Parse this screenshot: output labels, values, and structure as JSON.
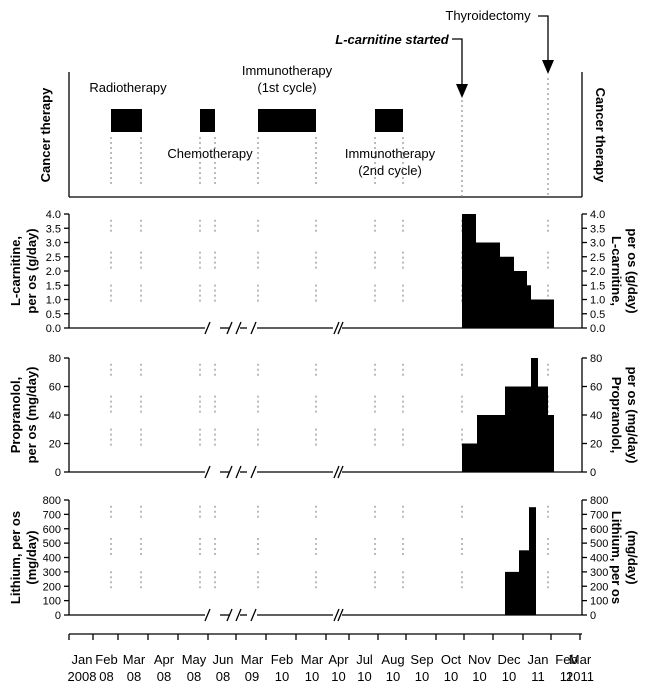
{
  "chart_data": {
    "type": "bar",
    "months": [
      {
        "m": "Jan",
        "y": "2008"
      },
      {
        "m": "Feb",
        "y": "08"
      },
      {
        "m": "Mar",
        "y": "08"
      },
      {
        "m": "Apr",
        "y": "08"
      },
      {
        "m": "May",
        "y": "08"
      },
      {
        "m": "Jun",
        "y": "08"
      },
      {
        "m": "Mar",
        "y": "09"
      },
      {
        "m": "Feb",
        "y": "10"
      },
      {
        "m": "Mar",
        "y": "10"
      },
      {
        "m": "Apr",
        "y": "10"
      },
      {
        "m": "Jul",
        "y": "10"
      },
      {
        "m": "Aug",
        "y": "10"
      },
      {
        "m": "Sep",
        "y": "10"
      },
      {
        "m": "Oct",
        "y": "10"
      },
      {
        "m": "Nov",
        "y": "10"
      },
      {
        "m": "Dec",
        "y": "10"
      },
      {
        "m": "Jan",
        "y": "11"
      },
      {
        "m": "Feb",
        "y": "11"
      },
      {
        "m": "Mar",
        "y": "2011"
      }
    ],
    "therapy_panel": {
      "side_label": "Cancer therapy",
      "bars": [
        {
          "name": "Radiotherapy",
          "start": "Mar 08",
          "end": "Apr 08"
        },
        {
          "name": "Chemotherapy",
          "start": "Jun 08",
          "end": "Jun 08"
        },
        {
          "name": "Immunotherapy (1st cycle)",
          "start": "Feb 10",
          "end": "Apr 10"
        },
        {
          "name": "Immunotherapy (2nd cycle)",
          "start": "Aug 10",
          "end": "Sep 10"
        }
      ],
      "labels": {
        "radiotherapy": "Radiotherapy",
        "chemotherapy": "Chemotherapy",
        "immuno1_l1": "Immunotherapy",
        "immuno1_l2": "(1st cycle)",
        "immuno2_l1": "Immunotherapy",
        "immuno2_l2": "(2nd cycle)"
      },
      "events": {
        "lcarnitine_started": "L-carnitine started",
        "thyroidectomy": "Thyroidectomy"
      }
    },
    "panels": [
      {
        "key": "lcarnitine",
        "ylabel_l1": "L-carnitine,",
        "ylabel_l2": "per os (g/day)",
        "ylim": [
          0,
          4
        ],
        "yticks": [
          "0.0",
          "0.5",
          "1.0",
          "1.5",
          "2.0",
          "2.5",
          "3.0",
          "3.5",
          "4.0"
        ],
        "steps": [
          {
            "from": "Nov 10",
            "to": "mid Nov 10",
            "value": 4.0
          },
          {
            "from": "mid Nov 10",
            "to": "Dec 10",
            "value": 3.0
          },
          {
            "from": "Dec 10",
            "to": "mid Dec 10",
            "value": 2.5
          },
          {
            "from": "mid Dec 10",
            "to": "Jan 11",
            "value": 2.0
          },
          {
            "from": "Jan 11",
            "to": "mid Jan 11",
            "value": 1.5
          },
          {
            "from": "mid Jan 11",
            "to": "late Feb 11",
            "value": 1.0
          }
        ]
      },
      {
        "key": "propranolol",
        "ylabel_l1": "Propranolol,",
        "ylabel_l2": "per os (mg/day)",
        "ylim": [
          0,
          80
        ],
        "yticks": [
          "0",
          "20",
          "40",
          "60",
          "80"
        ],
        "steps": [
          {
            "from": "Nov 10",
            "to": "mid Nov 10",
            "value": 20
          },
          {
            "from": "mid Nov 10",
            "to": "Dec 10",
            "value": 40
          },
          {
            "from": "Dec 10",
            "to": "late Dec 10",
            "value": 40
          },
          {
            "from": "late Dec 10",
            "to": "early Jan 11",
            "value": 60
          },
          {
            "from": "early Jan 11",
            "to": "mid Jan 11",
            "value": 60
          },
          {
            "from": "mid Jan 11",
            "to": "late Jan 11",
            "value": 80
          },
          {
            "from": "late Jan 11",
            "to": "Feb 11",
            "value": 60
          },
          {
            "from": "Feb 11",
            "to": "early Feb 11",
            "value": 40
          }
        ]
      },
      {
        "key": "lithium",
        "ylabel_l1": "Lithium, per os",
        "ylabel_l2": "(mg/day)",
        "ylim": [
          0,
          800
        ],
        "yticks": [
          "0",
          "100",
          "200",
          "300",
          "400",
          "500",
          "600",
          "700",
          "800"
        ],
        "steps": [
          {
            "from": "late Dec 10",
            "to": "early Jan 11",
            "value": 300
          },
          {
            "from": "early Jan 11",
            "to": "mid Jan 11",
            "value": 450
          },
          {
            "from": "mid Jan 11",
            "to": "late Jan 11",
            "value": 750
          }
        ]
      }
    ]
  }
}
